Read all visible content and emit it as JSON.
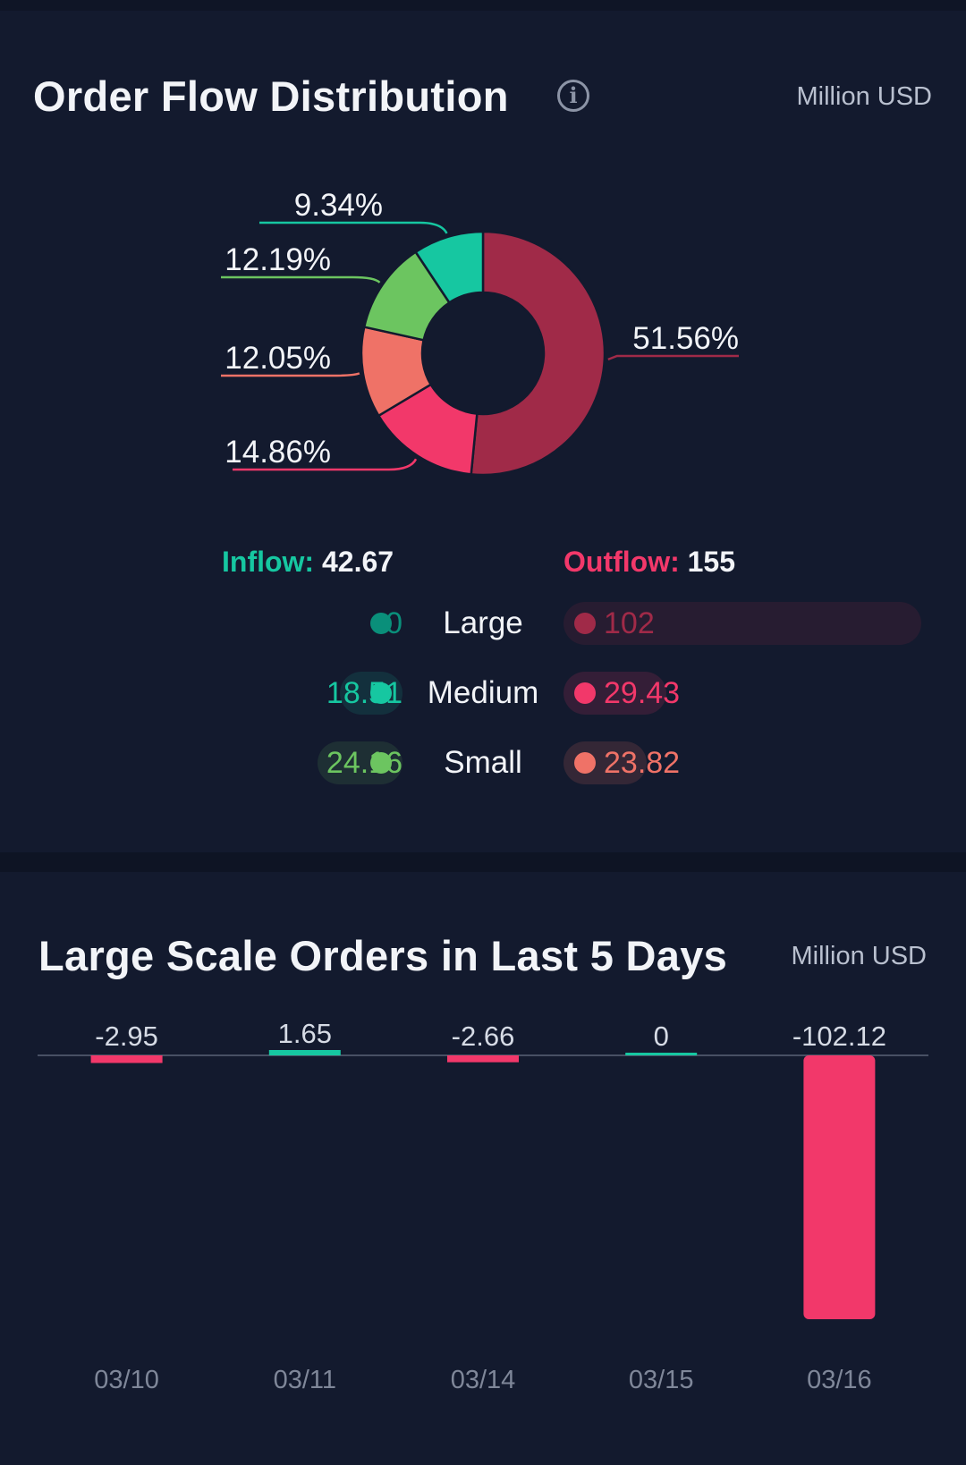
{
  "colors": {
    "large_out": "#a02a48",
    "medium_out": "#f2386a",
    "small_out": "#ef7267",
    "large_in": "#0a8f7a",
    "medium_in": "#16c7a1",
    "small_in": "#6cc560"
  },
  "distribution": {
    "title": "Order Flow Distribution",
    "info_icon": "info-icon",
    "unit": "Million USD",
    "inflow": {
      "label": "Inflow:",
      "value": "42.67"
    },
    "outflow": {
      "label": "Outflow:",
      "value": "155"
    },
    "rows": [
      {
        "category": "Large",
        "inflow": "0",
        "outflow": "102"
      },
      {
        "category": "Medium",
        "inflow": "18.51",
        "outflow": "29.43"
      },
      {
        "category": "Small",
        "inflow": "24.16",
        "outflow": "23.82"
      }
    ]
  },
  "large_orders": {
    "title": "Large Scale Orders in Last 5 Days",
    "unit": "Million USD"
  },
  "chart_data": [
    {
      "type": "pie",
      "title": "Order Flow Distribution",
      "slices": [
        {
          "name": "Large outflow",
          "label": "51.56%",
          "value": 51.56,
          "color": "#a02a48"
        },
        {
          "name": "Medium outflow",
          "label": "14.86%",
          "value": 14.86,
          "color": "#f2386a"
        },
        {
          "name": "Small outflow",
          "label": "12.05%",
          "value": 12.05,
          "color": "#ef7267"
        },
        {
          "name": "Small inflow",
          "label": "12.19%",
          "value": 12.19,
          "color": "#6cc560"
        },
        {
          "name": "Medium inflow",
          "label": "9.34%",
          "value": 9.34,
          "color": "#16c7a1"
        }
      ]
    },
    {
      "type": "bar",
      "title": "Large Scale Orders in Last 5 Days",
      "categories": [
        "03/10",
        "03/11",
        "03/14",
        "03/15",
        "03/16"
      ],
      "values": [
        -2.95,
        1.65,
        -2.66,
        0,
        -102.12
      ],
      "value_labels": [
        "-2.95",
        "1.65",
        "-2.66",
        "0",
        "-102.12"
      ],
      "positive_color": "#16c7a1",
      "negative_color": "#f2386a",
      "ylim": [
        -102.12,
        0
      ],
      "grid": false
    }
  ]
}
